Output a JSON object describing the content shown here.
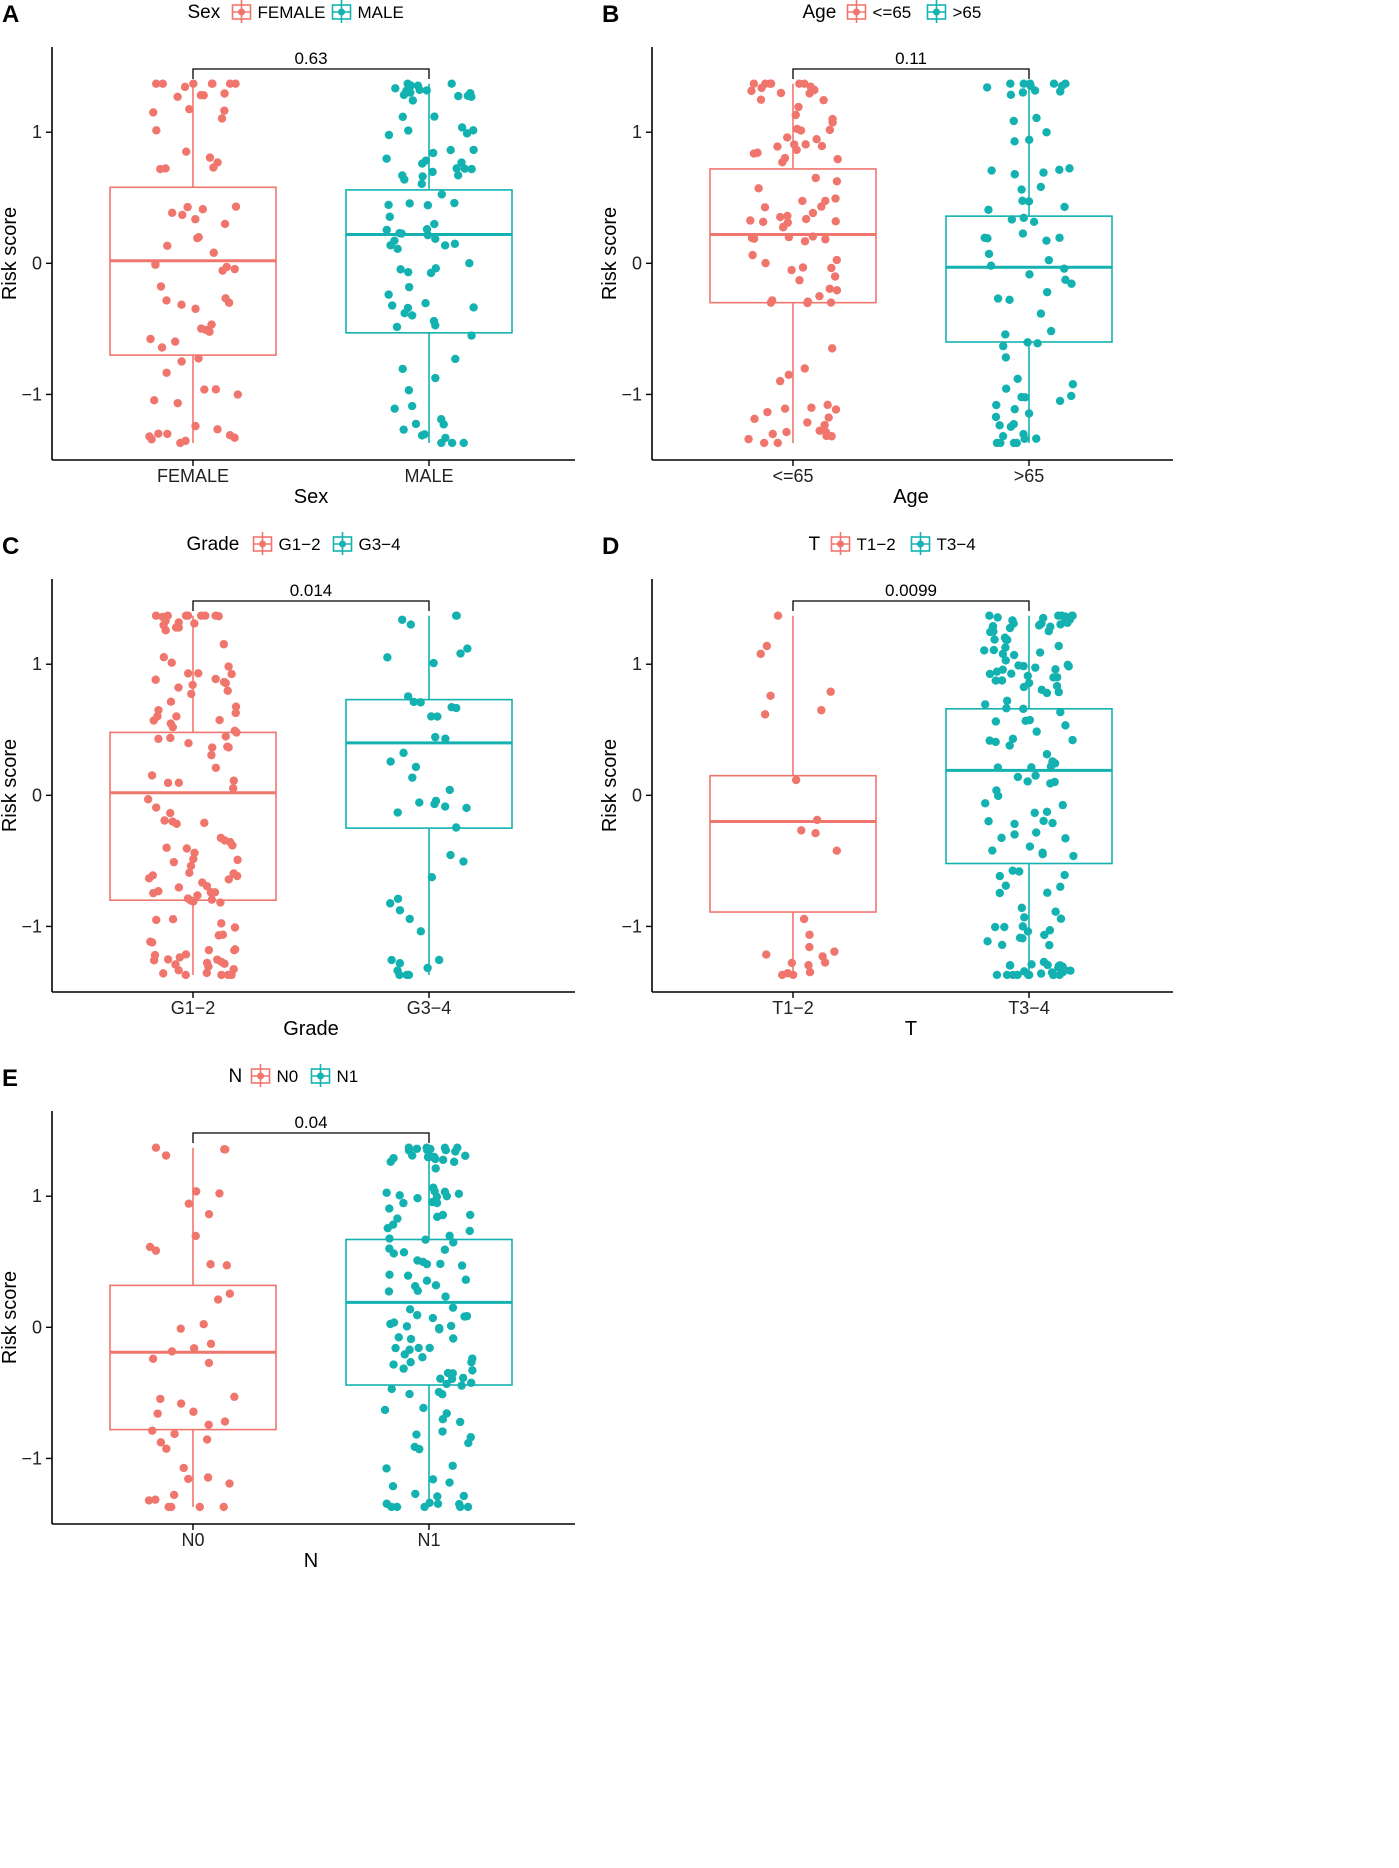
{
  "colors": {
    "group1": "#F0766D",
    "group2": "#13B2B0",
    "axis": "#000000",
    "bracket": "#000000"
  },
  "chart_data": [
    {
      "panel": "A",
      "type": "box",
      "variable": "Sex",
      "legend_title": "Sex",
      "categories": [
        "FEMALE",
        "MALE"
      ],
      "xlabel": "Sex",
      "ylabel": "Risk score",
      "ylim": [
        -1.5,
        1.65
      ],
      "yticks": [
        -1,
        0,
        1
      ],
      "yticklabels": [
        "−1",
        "0",
        "1"
      ],
      "p_value": "0.63",
      "boxes": [
        {
          "name": "FEMALE",
          "q1": -0.7,
          "median": 0.02,
          "q3": 0.58,
          "whisker_low": -1.37,
          "whisker_high": 1.37
        },
        {
          "name": "MALE",
          "q1": -0.53,
          "median": 0.22,
          "q3": 0.56,
          "whisker_low": -1.37,
          "whisker_high": 1.37
        }
      ],
      "points_n": [
        70,
        90
      ]
    },
    {
      "panel": "B",
      "type": "box",
      "variable": "Age",
      "legend_title": "Age",
      "categories": [
        "<=65",
        ">65"
      ],
      "xlabel": "Age",
      "ylabel": "Risk score",
      "ylim": [
        -1.5,
        1.65
      ],
      "yticks": [
        -1,
        0,
        1
      ],
      "yticklabels": [
        "−1",
        "0",
        "1"
      ],
      "p_value": "0.11",
      "boxes": [
        {
          "name": "<=65",
          "q1": -0.3,
          "median": 0.22,
          "q3": 0.72,
          "whisker_low": -1.37,
          "whisker_high": 1.37
        },
        {
          "name": ">65",
          "q1": -0.6,
          "median": -0.03,
          "q3": 0.36,
          "whisker_low": -1.37,
          "whisker_high": 1.37
        }
      ],
      "points_n": [
        95,
        75
      ]
    },
    {
      "panel": "C",
      "type": "box",
      "variable": "Grade",
      "legend_title": "Grade",
      "categories": [
        "G1−2",
        "G3−4"
      ],
      "xlabel": "Grade",
      "ylabel": "Risk score",
      "ylim": [
        -1.5,
        1.65
      ],
      "yticks": [
        -1,
        0,
        1
      ],
      "yticklabels": [
        "−1",
        "0",
        "1"
      ],
      "p_value": "0.014",
      "boxes": [
        {
          "name": "G1−2",
          "q1": -0.8,
          "median": 0.02,
          "q3": 0.48,
          "whisker_low": -1.37,
          "whisker_high": 1.37
        },
        {
          "name": "G3−4",
          "q1": -0.25,
          "median": 0.4,
          "q3": 0.73,
          "whisker_low": -1.37,
          "whisker_high": 1.37
        }
      ],
      "points_n": [
        125,
        45
      ]
    },
    {
      "panel": "D",
      "type": "box",
      "variable": "T",
      "legend_title": "T",
      "categories": [
        "T1−2",
        "T3−4"
      ],
      "xlabel": "T",
      "ylabel": "Risk score",
      "ylim": [
        -1.5,
        1.65
      ],
      "yticks": [
        -1,
        0,
        1
      ],
      "yticklabels": [
        "−1",
        "0",
        "1"
      ],
      "p_value": "0.0099",
      "boxes": [
        {
          "name": "T1−2",
          "q1": -0.89,
          "median": -0.2,
          "q3": 0.15,
          "whisker_low": -1.37,
          "whisker_high": 1.37
        },
        {
          "name": "T3−4",
          "q1": -0.52,
          "median": 0.19,
          "q3": 0.66,
          "whisker_low": -1.37,
          "whisker_high": 1.37
        }
      ],
      "points_n": [
        25,
        150
      ]
    },
    {
      "panel": "E",
      "type": "box",
      "variable": "N",
      "legend_title": "N",
      "categories": [
        "N0",
        "N1"
      ],
      "xlabel": "N",
      "ylabel": "Risk score",
      "ylim": [
        -1.5,
        1.65
      ],
      "yticks": [
        -1,
        0,
        1
      ],
      "yticklabels": [
        "−1",
        "0",
        "1"
      ],
      "p_value": "0.04",
      "boxes": [
        {
          "name": "N0",
          "q1": -0.78,
          "median": -0.19,
          "q3": 0.32,
          "whisker_low": -1.37,
          "whisker_high": 1.37
        },
        {
          "name": "N1",
          "q1": -0.44,
          "median": 0.19,
          "q3": 0.67,
          "whisker_low": -1.37,
          "whisker_high": 1.37
        }
      ],
      "points_n": [
        45,
        130
      ]
    }
  ]
}
